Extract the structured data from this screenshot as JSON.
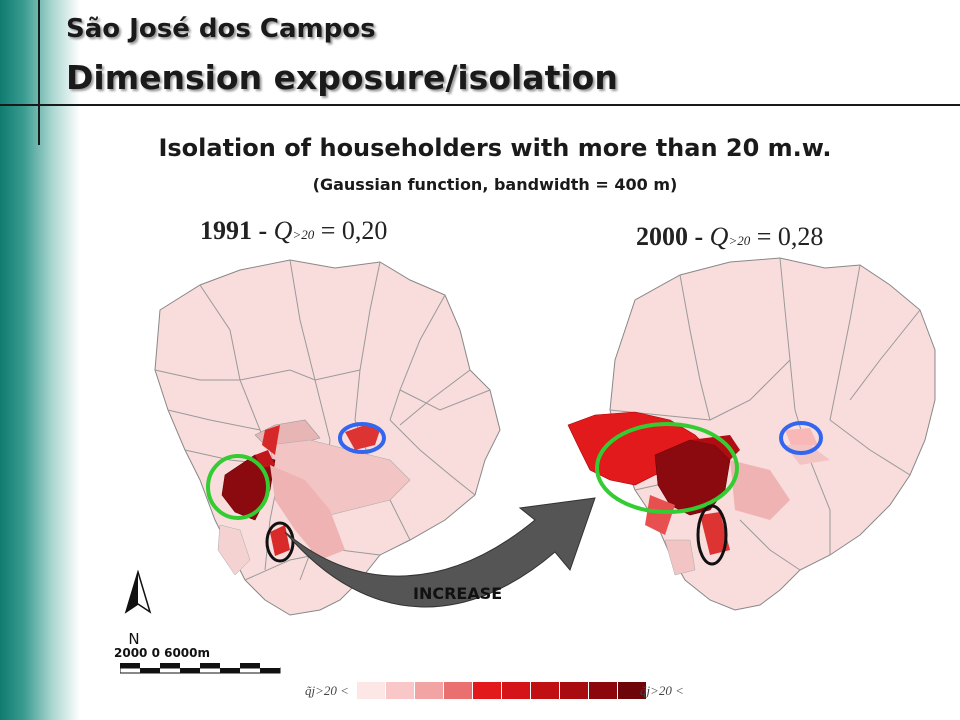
{
  "slide": {
    "title_top": "São José dos Campos",
    "title_main": "Dimension exposure/isolation",
    "heading": "Isolation of householders with more than 20 m.w.",
    "subheading": "(Gaussian function, bandwidth = 400 m)"
  },
  "maps": {
    "left_year": "1991 -",
    "left_symbol": "Q",
    "left_subscript": ">20",
    "left_value": "= 0,20",
    "right_year": "2000 -",
    "right_symbol": "Q",
    "right_subscript": ">20",
    "right_value": "= 0,28",
    "arrow_label": "INCREASE"
  },
  "north_arrow": {
    "label": "N"
  },
  "scale_bar": {
    "label": "2000      0          6000m"
  },
  "legend": {
    "left_label": "q̃j>20 <",
    "right_label": "q̃j>20 <",
    "colors": [
      "#fde6e6",
      "#f9c7c7",
      "#f2a4a4",
      "#ea7070",
      "#e31a1c",
      "#d41418",
      "#c01013",
      "#a80c10",
      "#8b070b",
      "#6e0508"
    ]
  },
  "colors": {
    "sidebar_accent": "#0f7b6f",
    "map_base": "#f9dcdc",
    "highlight_green": "#33cc33",
    "highlight_blue": "#3366ee",
    "highlight_black": "#111111"
  }
}
